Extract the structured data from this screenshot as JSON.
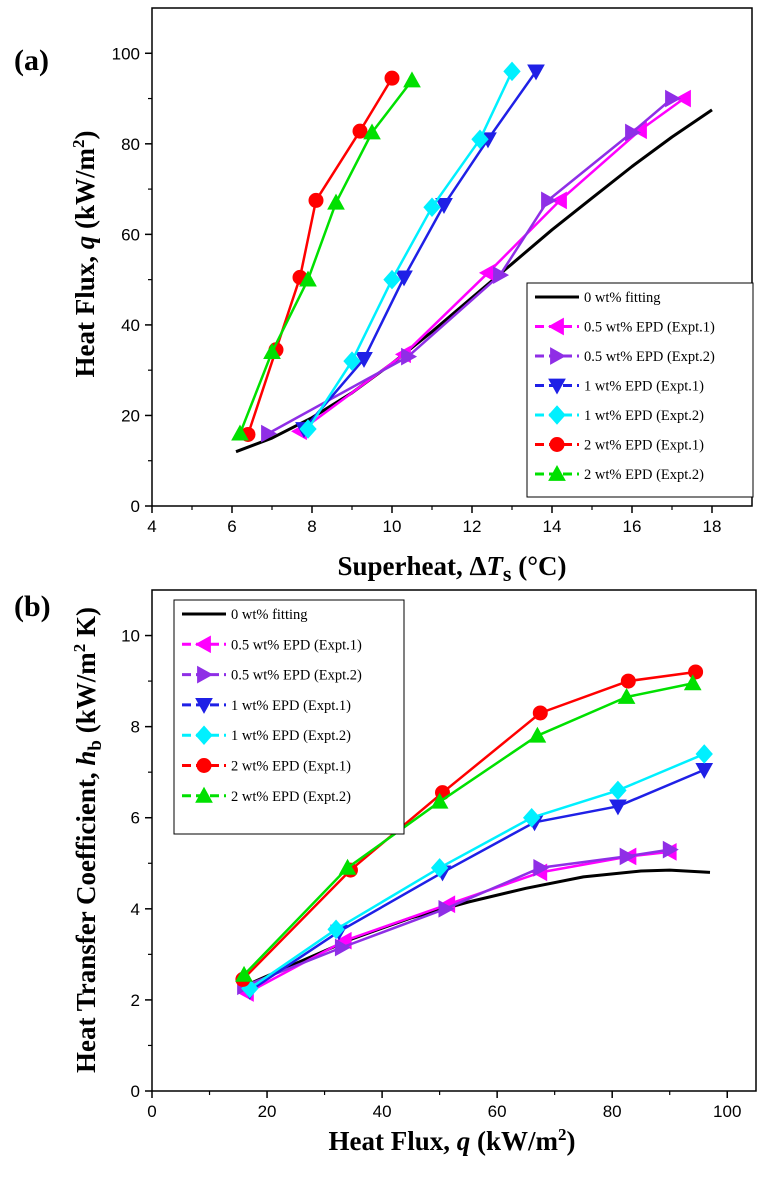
{
  "chart_data": [
    {
      "panel": "(a)",
      "type": "line",
      "xlabel_prefix": "Superheat, Δ",
      "xlabel_var": "T",
      "xlabel_sub": "s",
      "xlabel_suffix": " (°C)",
      "ylabel_prefix": "Heat Flux, ",
      "ylabel_var": "q",
      "ylabel_suffix": " (kW/m",
      "ylabel_sup": "2",
      "ylabel_end": ")",
      "xlim": [
        4,
        19
      ],
      "ylim": [
        0,
        110
      ],
      "xticks": [
        4,
        6,
        8,
        10,
        12,
        14,
        16,
        18
      ],
      "yticks": [
        0,
        20,
        40,
        60,
        80,
        100
      ],
      "legend_position": "bottom-right",
      "series": [
        {
          "name": "0 wt% fitting",
          "color": "#000000",
          "marker": "none",
          "x": [
            6.1,
            7.0,
            8.0,
            9.0,
            10.0,
            11.0,
            12.0,
            13.0,
            14.0,
            15.0,
            16.0,
            17.0,
            18.0
          ],
          "y": [
            12,
            15,
            19.5,
            25,
            31.5,
            38.5,
            46,
            53.5,
            61,
            68,
            75,
            81.5,
            87.5
          ]
        },
        {
          "name": "0.5 wt% EPD (Expt.1)",
          "color": "#ff00ff",
          "marker": "tri-left",
          "x": [
            7.7,
            10.3,
            12.4,
            14.2,
            16.2,
            17.3
          ],
          "y": [
            16.5,
            33.5,
            51.5,
            67.5,
            83,
            90
          ]
        },
        {
          "name": "0.5 wt% EPD (Expt.2)",
          "color": "#8f2ee6",
          "marker": "tri-right",
          "x": [
            6.9,
            10.4,
            12.7,
            13.9,
            16.0,
            17.0
          ],
          "y": [
            16,
            33,
            51,
            67.5,
            82.5,
            90
          ]
        },
        {
          "name": "1 wt% EPD (Expt.1)",
          "color": "#1f20e6",
          "marker": "tri-down",
          "x": [
            7.8,
            9.3,
            10.3,
            11.3,
            12.4,
            13.6
          ],
          "y": [
            17,
            32.5,
            50.5,
            66.5,
            81,
            96
          ]
        },
        {
          "name": "1 wt% EPD (Expt.2)",
          "color": "#00f0ff",
          "marker": "diamond",
          "x": [
            7.9,
            9.0,
            10.0,
            11.0,
            12.2,
            13.0
          ],
          "y": [
            17,
            32,
            50,
            66,
            81,
            96
          ]
        },
        {
          "name": "2 wt% EPD (Expt.1)",
          "color": "#ff0000",
          "marker": "circle",
          "x": [
            6.4,
            7.1,
            7.7,
            8.1,
            9.2,
            10.0
          ],
          "y": [
            15.8,
            34.5,
            50.5,
            67.5,
            82.8,
            94.5
          ]
        },
        {
          "name": "2 wt% EPD (Expt.2)",
          "color": "#00e000",
          "marker": "tri-up",
          "x": [
            6.2,
            7.0,
            7.9,
            8.6,
            9.5,
            10.5
          ],
          "y": [
            16,
            34,
            50,
            67,
            82.5,
            94
          ]
        }
      ]
    },
    {
      "panel": "(b)",
      "type": "line",
      "xlabel_prefix": "Heat Flux, ",
      "xlabel_var": "q",
      "xlabel_suffix": " (kW/m",
      "xlabel_sup": "2",
      "xlabel_end": ")",
      "ylabel_prefix": "Heat Transfer Coefficient, ",
      "ylabel_var": "h",
      "ylabel_sub": "b",
      "ylabel_suffix": " (kW/m",
      "ylabel_sup": "2",
      "ylabel_end": " K)",
      "xlim": [
        0,
        105
      ],
      "ylim": [
        0,
        11
      ],
      "xticks": [
        0,
        20,
        40,
        60,
        80,
        100
      ],
      "yticks": [
        0,
        2,
        4,
        6,
        8,
        10
      ],
      "legend_position": "top-left",
      "series": [
        {
          "name": "0 wt% fitting",
          "color": "#000000",
          "marker": "none",
          "x": [
            16,
            25,
            35,
            45,
            55,
            65,
            75,
            85,
            90,
            97
          ],
          "y": [
            2.3,
            2.8,
            3.35,
            3.8,
            4.15,
            4.45,
            4.7,
            4.83,
            4.85,
            4.8
          ]
        },
        {
          "name": "0.5 wt% EPD (Expt.1)",
          "color": "#ff00ff",
          "marker": "tri-left",
          "x": [
            16.5,
            33.5,
            51.5,
            67.5,
            83,
            90
          ],
          "y": [
            2.15,
            3.3,
            4.1,
            4.8,
            5.15,
            5.25
          ]
        },
        {
          "name": "0.5 wt% EPD (Expt.2)",
          "color": "#8f2ee6",
          "marker": "tri-right",
          "x": [
            16,
            33,
            51,
            67.5,
            82.5,
            90
          ],
          "y": [
            2.3,
            3.15,
            4.0,
            4.9,
            5.15,
            5.3
          ]
        },
        {
          "name": "1 wt% EPD (Expt.1)",
          "color": "#1f20e6",
          "marker": "tri-down",
          "x": [
            17,
            32.5,
            50.5,
            66.5,
            81,
            96
          ],
          "y": [
            2.2,
            3.5,
            4.8,
            5.9,
            6.25,
            7.05
          ]
        },
        {
          "name": "1 wt% EPD (Expt.2)",
          "color": "#00f0ff",
          "marker": "diamond",
          "x": [
            17,
            32,
            50,
            66,
            81,
            96
          ],
          "y": [
            2.25,
            3.55,
            4.9,
            6.0,
            6.6,
            7.4
          ]
        },
        {
          "name": "2 wt% EPD (Expt.1)",
          "color": "#ff0000",
          "marker": "circle",
          "x": [
            15.8,
            34.5,
            50.5,
            67.5,
            82.8,
            94.5
          ],
          "y": [
            2.45,
            4.85,
            6.55,
            8.3,
            9.0,
            9.2
          ]
        },
        {
          "name": "2 wt% EPD (Expt.2)",
          "color": "#00e000",
          "marker": "tri-up",
          "x": [
            16,
            34,
            50,
            67,
            82.5,
            94
          ],
          "y": [
            2.55,
            4.9,
            6.35,
            7.8,
            8.65,
            8.95
          ]
        }
      ]
    }
  ]
}
